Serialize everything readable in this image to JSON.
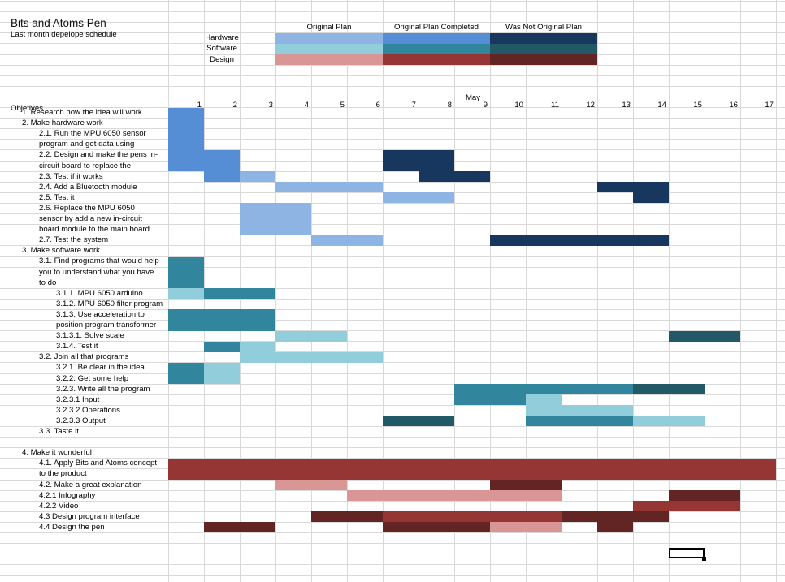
{
  "title": "Bits and Atoms Pen",
  "subtitle": "Last month depelope schedule",
  "legend": {
    "columns": [
      "Original Plan",
      "Original Plan Completed",
      "Was Not Original Plan"
    ],
    "rows": [
      {
        "label": "Hardware",
        "colors": [
          "#8db4e2",
          "#558ed5",
          "#17375e"
        ]
      },
      {
        "label": "Software",
        "colors": [
          "#92cddc",
          "#31859c",
          "#215967"
        ]
      },
      {
        "label": "Design",
        "colors": [
          "#da9694",
          "#963634",
          "#632523"
        ]
      }
    ]
  },
  "month": "May",
  "objectives_label": "Objetives",
  "days": [
    "1",
    "2",
    "3",
    "4",
    "5",
    "6",
    "7",
    "8",
    "9",
    "10",
    "11",
    "12",
    "13",
    "14",
    "15",
    "16",
    "17"
  ],
  "tasks": [
    {
      "row": 10,
      "indent": 1,
      "text": "1.  Research how the idea will work"
    },
    {
      "row": 11,
      "indent": 1,
      "text": "2.  Make hardware work"
    },
    {
      "row": 12,
      "indent": 2,
      "text": "2.1. Run the MPU 6050 sensor"
    },
    {
      "row": 13,
      "indent": 2,
      "text": "program and get data using"
    },
    {
      "row": 14,
      "indent": 2,
      "text": "2.2.  Design and make the pens in-"
    },
    {
      "row": 15,
      "indent": 2,
      "text": "circuit board to replace the"
    },
    {
      "row": 16,
      "indent": 2,
      "text": "2.3.  Test if it works"
    },
    {
      "row": 17,
      "indent": 2,
      "text": "2.4.  Add a Bluetooth module"
    },
    {
      "row": 18,
      "indent": 2,
      "text": "2.5.  Test it"
    },
    {
      "row": 19,
      "indent": 2,
      "text": "2.6.  Replace the MPU 6050"
    },
    {
      "row": 20,
      "indent": 2,
      "text": "sensor by add a new in-circuit"
    },
    {
      "row": 21,
      "indent": 2,
      "text": "board module to the main board."
    },
    {
      "row": 22,
      "indent": 2,
      "text": "2.7.  Test the system"
    },
    {
      "row": 23,
      "indent": 1,
      "text": "3.  Make software work"
    },
    {
      "row": 24,
      "indent": 2,
      "text": "3.1.  Find programs that would help"
    },
    {
      "row": 25,
      "indent": 2,
      "text": "you to understand what you have"
    },
    {
      "row": 26,
      "indent": 2,
      "text": "to do"
    },
    {
      "row": 27,
      "indent": 3,
      "text": "3.1.1. MPU 6050 arduino"
    },
    {
      "row": 28,
      "indent": 3,
      "text": "3.1.2. MPU 6050 filter program"
    },
    {
      "row": 29,
      "indent": 3,
      "text": "3.1.3.  Use acceleration to"
    },
    {
      "row": 30,
      "indent": 3,
      "text": "position program transformer"
    },
    {
      "row": 31,
      "indent": 3,
      "text": "3.1.3.1. Solve scale"
    },
    {
      "row": 32,
      "indent": 3,
      "text": "3.1.4. Test it"
    },
    {
      "row": 33,
      "indent": 2,
      "text": "3.2.  Join all that programs"
    },
    {
      "row": 34,
      "indent": 3,
      "text": "3.2.1. Be clear in the idea"
    },
    {
      "row": 35,
      "indent": 3,
      "text": "3.2.2. Get some help"
    },
    {
      "row": 36,
      "indent": 3,
      "text": "3.2.3. Write all the program"
    },
    {
      "row": 37,
      "indent": 3,
      "text": "3.2.3.1 Input"
    },
    {
      "row": 38,
      "indent": 3,
      "text": "3.2.3.2 Operations"
    },
    {
      "row": 39,
      "indent": 3,
      "text": "3.2.3.3 Output"
    },
    {
      "row": 40,
      "indent": 2,
      "text": "3.3.  Taste it"
    },
    {
      "row": 42,
      "indent": 1,
      "text": "4.  Make it wonderful"
    },
    {
      "row": 43,
      "indent": 2,
      "text": "4.1.  Apply Bits and Atoms concept"
    },
    {
      "row": 44,
      "indent": 2,
      "text": "to the product"
    },
    {
      "row": 45,
      "indent": 2,
      "text": "4.2.  Make a great explanation"
    },
    {
      "row": 46,
      "indent": 2,
      "text": "4.2.1 Infography"
    },
    {
      "row": 47,
      "indent": 2,
      "text": "4.2.2 Video"
    },
    {
      "row": 48,
      "indent": 2,
      "text": "4.3 Design program interface"
    },
    {
      "row": 49,
      "indent": 2,
      "text": "4.4 Design the pen"
    }
  ],
  "bars": [
    {
      "rows": [
        10,
        13
      ],
      "days": [
        1,
        1
      ],
      "color": "#558ed5"
    },
    {
      "rows": [
        14,
        15
      ],
      "days": [
        1,
        1
      ],
      "color": "#558ed5"
    },
    {
      "rows": [
        14,
        15
      ],
      "days": [
        2,
        2
      ],
      "color": "#558ed5"
    },
    {
      "rows": [
        16,
        16
      ],
      "days": [
        2,
        2
      ],
      "color": "#558ed5"
    },
    {
      "rows": [
        14,
        15
      ],
      "days": [
        7,
        8
      ],
      "color": "#17375e"
    },
    {
      "rows": [
        16,
        16
      ],
      "days": [
        3,
        3
      ],
      "color": "#8db4e2"
    },
    {
      "rows": [
        16,
        16
      ],
      "days": [
        8,
        9
      ],
      "color": "#17375e"
    },
    {
      "rows": [
        17,
        17
      ],
      "days": [
        4,
        6
      ],
      "color": "#8db4e2"
    },
    {
      "rows": [
        17,
        17
      ],
      "days": [
        13,
        14
      ],
      "color": "#17375e"
    },
    {
      "rows": [
        18,
        18
      ],
      "days": [
        7,
        8
      ],
      "color": "#8db4e2"
    },
    {
      "rows": [
        18,
        18
      ],
      "days": [
        14,
        14
      ],
      "color": "#17375e"
    },
    {
      "rows": [
        19,
        21
      ],
      "days": [
        3,
        4
      ],
      "color": "#8db4e2"
    },
    {
      "rows": [
        22,
        22
      ],
      "days": [
        5,
        6
      ],
      "color": "#8db4e2"
    },
    {
      "rows": [
        22,
        22
      ],
      "days": [
        10,
        14
      ],
      "color": "#17375e"
    },
    {
      "rows": [
        24,
        26
      ],
      "days": [
        1,
        1
      ],
      "color": "#31859c"
    },
    {
      "rows": [
        27,
        27
      ],
      "days": [
        1,
        1
      ],
      "color": "#92cddc"
    },
    {
      "rows": [
        27,
        27
      ],
      "days": [
        2,
        3
      ],
      "color": "#31859c"
    },
    {
      "rows": [
        29,
        30
      ],
      "days": [
        1,
        3
      ],
      "color": "#31859c"
    },
    {
      "rows": [
        31,
        31
      ],
      "days": [
        4,
        5
      ],
      "color": "#92cddc"
    },
    {
      "rows": [
        31,
        31
      ],
      "days": [
        15,
        16
      ],
      "color": "#215967"
    },
    {
      "rows": [
        32,
        32
      ],
      "days": [
        2,
        2
      ],
      "color": "#31859c"
    },
    {
      "rows": [
        32,
        32
      ],
      "days": [
        3,
        3
      ],
      "color": "#92cddc"
    },
    {
      "rows": [
        33,
        33
      ],
      "days": [
        3,
        6
      ],
      "color": "#92cddc"
    },
    {
      "rows": [
        34,
        35
      ],
      "days": [
        1,
        1
      ],
      "color": "#31859c"
    },
    {
      "rows": [
        34,
        35
      ],
      "days": [
        2,
        2
      ],
      "color": "#92cddc"
    },
    {
      "rows": [
        36,
        37
      ],
      "days": [
        9,
        10
      ],
      "color": "#31859c"
    },
    {
      "rows": [
        36,
        36
      ],
      "days": [
        11,
        13
      ],
      "color": "#31859c"
    },
    {
      "rows": [
        36,
        36
      ],
      "days": [
        14,
        15
      ],
      "color": "#215967"
    },
    {
      "rows": [
        37,
        37
      ],
      "days": [
        11,
        11
      ],
      "color": "#92cddc"
    },
    {
      "rows": [
        38,
        38
      ],
      "days": [
        11,
        13
      ],
      "color": "#92cddc"
    },
    {
      "rows": [
        39,
        39
      ],
      "days": [
        7,
        8
      ],
      "color": "#215967"
    },
    {
      "rows": [
        39,
        39
      ],
      "days": [
        11,
        13
      ],
      "color": "#31859c"
    },
    {
      "rows": [
        39,
        39
      ],
      "days": [
        14,
        15
      ],
      "color": "#92cddc"
    },
    {
      "rows": [
        43,
        44
      ],
      "days": [
        1,
        17
      ],
      "color": "#963634"
    },
    {
      "rows": [
        45,
        45
      ],
      "days": [
        4,
        5
      ],
      "color": "#da9694"
    },
    {
      "rows": [
        45,
        45
      ],
      "days": [
        10,
        11
      ],
      "color": "#632523"
    },
    {
      "rows": [
        46,
        46
      ],
      "days": [
        6,
        11
      ],
      "color": "#da9694"
    },
    {
      "rows": [
        46,
        46
      ],
      "days": [
        15,
        16
      ],
      "color": "#632523"
    },
    {
      "rows": [
        47,
        47
      ],
      "days": [
        14,
        16
      ],
      "color": "#963634"
    },
    {
      "rows": [
        48,
        48
      ],
      "days": [
        5,
        6
      ],
      "color": "#632523"
    },
    {
      "rows": [
        48,
        48
      ],
      "days": [
        7,
        11
      ],
      "color": "#963634"
    },
    {
      "rows": [
        48,
        48
      ],
      "days": [
        12,
        14
      ],
      "color": "#632523"
    },
    {
      "rows": [
        49,
        49
      ],
      "days": [
        2,
        3
      ],
      "color": "#632523"
    },
    {
      "rows": [
        49,
        49
      ],
      "days": [
        7,
        9
      ],
      "color": "#632523"
    },
    {
      "rows": [
        49,
        49
      ],
      "days": [
        10,
        11
      ],
      "color": "#da9694"
    },
    {
      "rows": [
        49,
        49
      ],
      "days": [
        13,
        13
      ],
      "color": "#632523"
    }
  ]
}
